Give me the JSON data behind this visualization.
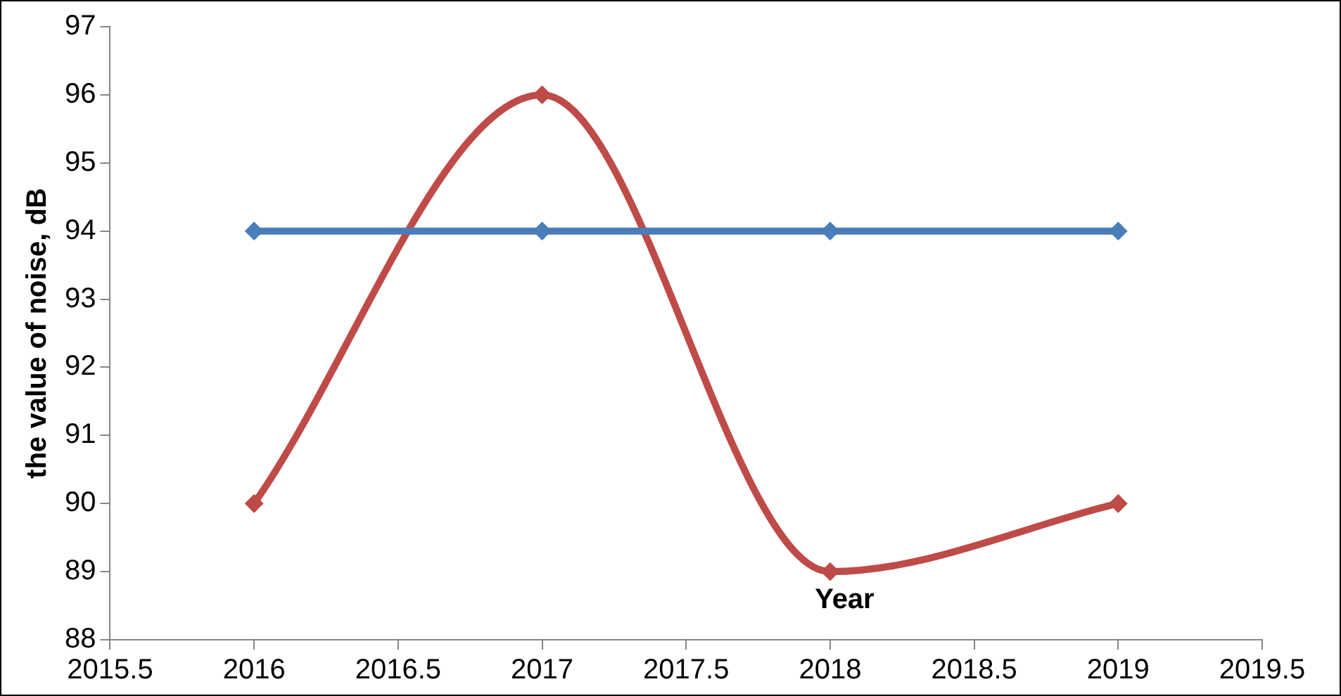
{
  "chart_data": {
    "type": "line",
    "xlabel": "Year",
    "ylabel": "the value of noise, dB",
    "x": [
      2016,
      2017,
      2018,
      2019
    ],
    "series": [
      {
        "color": "#4a7ebb",
        "values": [
          94,
          94,
          94,
          94
        ]
      },
      {
        "color": "#be4b48",
        "values": [
          90,
          96,
          89,
          90
        ]
      }
    ],
    "xlim": [
      2015.5,
      2019.5
    ],
    "xticks": [
      2015.5,
      2016,
      2016.5,
      2017,
      2017.5,
      2018,
      2018.5,
      2019,
      2019.5
    ],
    "ylim": [
      88,
      97
    ],
    "yticks": [
      88,
      89,
      90,
      91,
      92,
      93,
      94,
      95,
      96,
      97
    ],
    "grid": false,
    "legend": false,
    "marker": "diamond",
    "line_style": "solid"
  }
}
